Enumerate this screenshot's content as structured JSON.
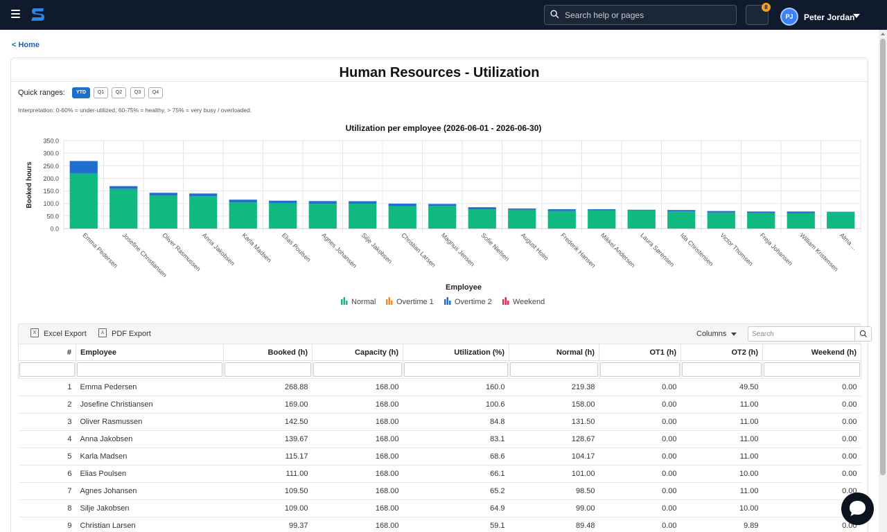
{
  "topbar": {
    "search_placeholder": "Search help or pages",
    "notification_count": "8",
    "user_initials": "PJ",
    "user_name": "Peter Jordan"
  },
  "breadcrumb": {
    "home_label": "<  Home"
  },
  "page": {
    "title": "Human Resources - Utilization",
    "quick_ranges_label": "Quick ranges:",
    "quick_ranges": [
      "YTD",
      "Q1",
      "Q2",
      "Q3",
      "Q4"
    ],
    "active_range": "YTD",
    "interpretation": "Interpretation: 0-60% = under-utilized, 60-75% = healthy, > 75% = very busy / overloaded."
  },
  "chart_data": {
    "type": "bar",
    "stacked": true,
    "title": "Utilization per employee (2026-06-01 - 2026-06-30)",
    "xlabel": "Employee",
    "ylabel": "Booked hours",
    "ylim": [
      0,
      350
    ],
    "y_ticks": [
      "0.0",
      "50.0",
      "100.0",
      "150.0",
      "200.0",
      "250.0",
      "300.0",
      "350.0"
    ],
    "grid": true,
    "legend_position": "bottom",
    "categories": [
      "Emma Pedersen",
      "Josefine Christiansen",
      "Oliver Rasmussen",
      "Anna Jakobsen",
      "Karla Madsen",
      "Elias Poulsen",
      "Agnes Johansen",
      "Silje Jakobsen",
      "Christian Larsen",
      "Magnus Jensen",
      "Sofie Nielsen",
      "August Holm",
      "Frederik Hansen",
      "Mikkel Andersen",
      "Laura Sørensen",
      "Ida Christensen",
      "Victor Thomsen",
      "Freja Johansen",
      "William Kristensen",
      "Alma ..."
    ],
    "series": [
      {
        "name": "Normal",
        "color": "#10b981",
        "values": [
          219.38,
          158.0,
          131.5,
          128.67,
          104.17,
          101.0,
          98.5,
          99.0,
          89.48,
          90,
          77,
          75,
          70,
          73,
          72,
          68,
          64,
          61,
          62,
          65
        ]
      },
      {
        "name": "Overtime 1",
        "color": "#f08c2a",
        "values": [
          0,
          0,
          0,
          0,
          0,
          0,
          0,
          0,
          0,
          0,
          0,
          0,
          0,
          0,
          0,
          0,
          0,
          0,
          0,
          0
        ]
      },
      {
        "name": "Overtime 2",
        "color": "#1f6fd1",
        "values": [
          49.5,
          11.0,
          11.0,
          11.0,
          11.0,
          10.0,
          11.0,
          10.0,
          9.89,
          8,
          8,
          5,
          7,
          4,
          3,
          6,
          6,
          7,
          6,
          2
        ]
      },
      {
        "name": "Weekend",
        "color": "#dc2f55",
        "values": [
          0,
          0,
          0,
          0,
          0,
          0,
          0,
          0,
          0,
          0,
          0,
          0,
          0,
          0,
          0,
          0,
          0,
          0,
          0,
          0
        ]
      }
    ]
  },
  "toolbar": {
    "excel_export": "Excel Export",
    "pdf_export": "PDF Export",
    "columns": "Columns",
    "search_placeholder": "Search"
  },
  "table": {
    "headers": [
      "#",
      "Employee",
      "Booked (h)",
      "Capacity (h)",
      "Utilization (%)",
      "Normal (h)",
      "OT1 (h)",
      "OT2 (h)",
      "Weekend (h)"
    ],
    "rows": [
      [
        "1",
        "Emma Pedersen",
        "268.88",
        "168.00",
        "160.0",
        "219.38",
        "0.00",
        "49.50",
        "0.00"
      ],
      [
        "2",
        "Josefine Christiansen",
        "169.00",
        "168.00",
        "100.6",
        "158.00",
        "0.00",
        "11.00",
        "0.00"
      ],
      [
        "3",
        "Oliver Rasmussen",
        "142.50",
        "168.00",
        "84.8",
        "131.50",
        "0.00",
        "11.00",
        "0.00"
      ],
      [
        "4",
        "Anna Jakobsen",
        "139.67",
        "168.00",
        "83.1",
        "128.67",
        "0.00",
        "11.00",
        "0.00"
      ],
      [
        "5",
        "Karla Madsen",
        "115.17",
        "168.00",
        "68.6",
        "104.17",
        "0.00",
        "11.00",
        "0.00"
      ],
      [
        "6",
        "Elias Poulsen",
        "111.00",
        "168.00",
        "66.1",
        "101.00",
        "0.00",
        "10.00",
        "0.00"
      ],
      [
        "7",
        "Agnes Johansen",
        "109.50",
        "168.00",
        "65.2",
        "98.50",
        "0.00",
        "11.00",
        "0.00"
      ],
      [
        "8",
        "Silje Jakobsen",
        "109.00",
        "168.00",
        "64.9",
        "99.00",
        "0.00",
        "10.00",
        "0.00"
      ],
      [
        "9",
        "Christian Larsen",
        "99.37",
        "168.00",
        "59.1",
        "89.48",
        "0.00",
        "9.89",
        "0.00"
      ]
    ]
  }
}
